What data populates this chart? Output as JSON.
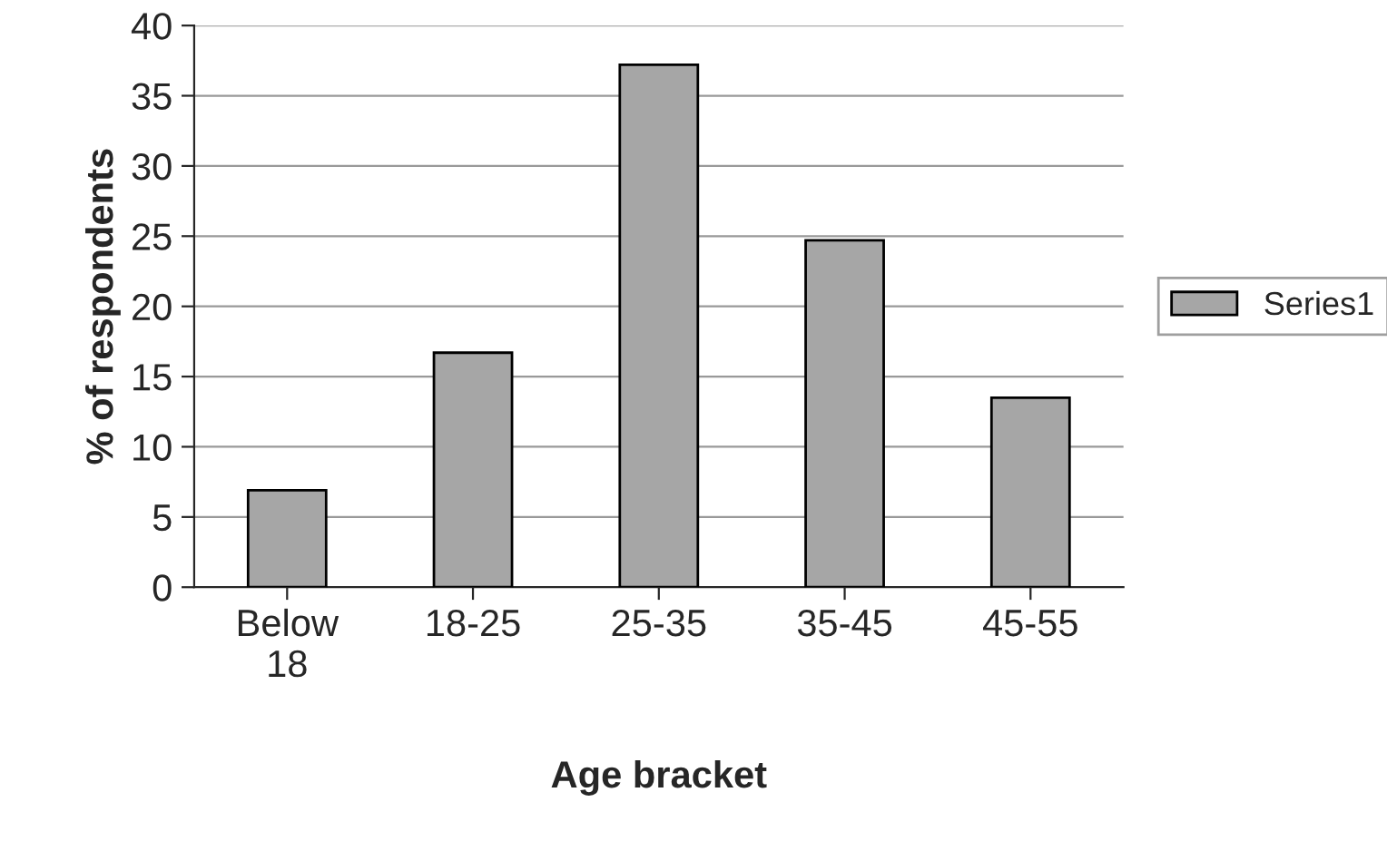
{
  "chart_data": {
    "type": "bar",
    "xlabel": "Age bracket",
    "ylabel": "% of respondents",
    "categories": [
      "Below\n18",
      "18-25",
      "25-35",
      "35-45",
      "45-55"
    ],
    "series": [
      {
        "name": "Series1",
        "color": "#a6a6a6",
        "values": [
          6.9,
          16.7,
          37.2,
          24.7,
          13.5
        ]
      }
    ],
    "ylim": [
      0,
      40
    ],
    "yticks": [
      0,
      5,
      10,
      15,
      20,
      25,
      30,
      35,
      40
    ],
    "grid": "y",
    "legend": "right"
  }
}
